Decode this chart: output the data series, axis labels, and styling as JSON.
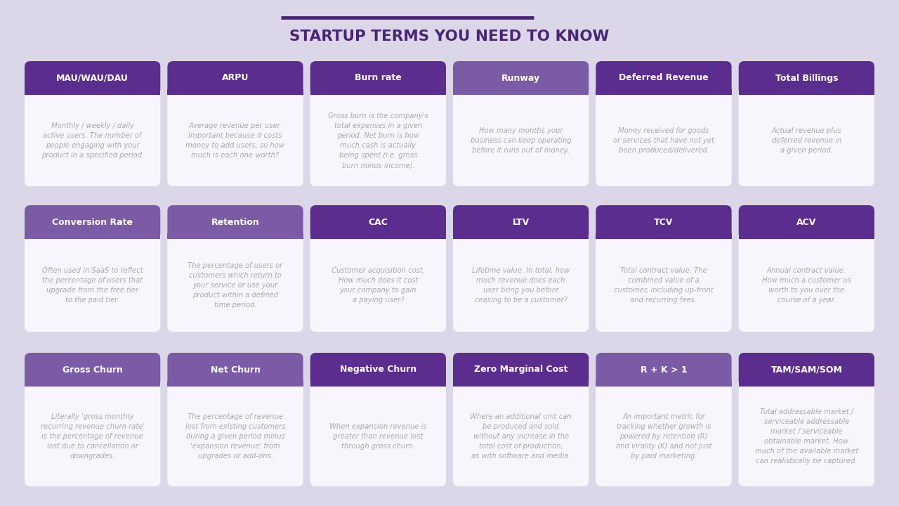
{
  "title": "STARTUP TERMS YOU NEED TO KNOW",
  "bg_color": "#dcd7e8",
  "header_bg_dark": "#5b2d8e",
  "header_bg_light": "#7b5aa6",
  "card_bg": "#f8f6fc",
  "title_color": "#4a2575",
  "header_text_color": "#ffffff",
  "desc_text_color": "#aaaaaa",
  "title_line_color": "#4a2575",
  "rows": [
    [
      {
        "term": "MAU/WAU/DAU",
        "desc": "Monthly / weekly / daily\nactive users. The number of\npeople engaging with your\nproduct in a specified period.",
        "dark": true
      },
      {
        "term": "ARPU",
        "desc": "Average revenue per user.\nImportant because it costs\nmoney to add users, so how\nmuch is each one worth?",
        "dark": true
      },
      {
        "term": "Burn rate",
        "desc": "Gross burn is the company's\ntotal expenses in a given\nperiod. Net burn is how\nmuch cash is actually\nbeing spent (i.e. gross\nburn minus income).",
        "dark": true
      },
      {
        "term": "Runway",
        "desc": "How many months your\nbusiness can keep operating\nbefore it runs out of money.",
        "dark": false
      },
      {
        "term": "Deferred Revenue",
        "desc": "Money received for goods\nor services that have not yet\nbeen produced/delivered.",
        "dark": true
      },
      {
        "term": "Total Billings",
        "desc": "Actual revenue plus\ndeferred revenue in\na given period.",
        "dark": true
      }
    ],
    [
      {
        "term": "Conversion Rate",
        "desc": "Often used in SaaS to reflect\nthe percentage of users that\nupgrade from the free tier\nto the paid tier.",
        "dark": false
      },
      {
        "term": "Retention",
        "desc": "The percentage of users or\ncustomers which return to\nyour service or use your\nproduct within a defined\ntime period.",
        "dark": false
      },
      {
        "term": "CAC",
        "desc": "Customer acquisition cost.\nHow much does it cost\nyour company to gain\na paying user?",
        "dark": true
      },
      {
        "term": "LTV",
        "desc": "Lifetime value. In total, how\nmuch revenue does each\nuser bring you before\nceasing to be a customer?",
        "dark": true
      },
      {
        "term": "TCV",
        "desc": "Total contract value. The\ncombined value of a\ncustomer, including up-front\nand recurring fees.",
        "dark": true
      },
      {
        "term": "ACV",
        "desc": "Annual contract value.\nHow much a customer us\nworth to you over the\ncourse of a year.",
        "dark": true
      }
    ],
    [
      {
        "term": "Gross Churn",
        "desc": "Literally 'gross monthly\nrecurring revenue churn rate'\nis the percentage of revenue\nlost due to cancellation or\ndowngrades.",
        "dark": false
      },
      {
        "term": "Net Churn",
        "desc": "The percentage of revenue\nlost from existing customers\nduring a given period minus\n'expansion revenue' from\nupgrades or add-ons.",
        "dark": false
      },
      {
        "term": "Negative Churn",
        "desc": "When expansion revenue is\ngreater than revenue lost\nthrough gross churn.",
        "dark": true
      },
      {
        "term": "Zero Marginal Cost",
        "desc": "Where an additional unit can\nbe produced and sold\nwithout any increase in the\ntotal cost of production,\nas with software and media.",
        "dark": true
      },
      {
        "term": "R + K > 1",
        "desc": "An important metric for\ntracking whether growth is\npowered by retention (R)\nand virality (K) and not just\nby paid marketing.",
        "dark": false
      },
      {
        "term": "TAM/SAM/SOM",
        "desc": "Total addressable market /\nserviceable addressable\nmarket / serviceable\nobtainable market. How\nmuch of the available market\ncan realistically be captured.",
        "dark": true
      }
    ]
  ]
}
